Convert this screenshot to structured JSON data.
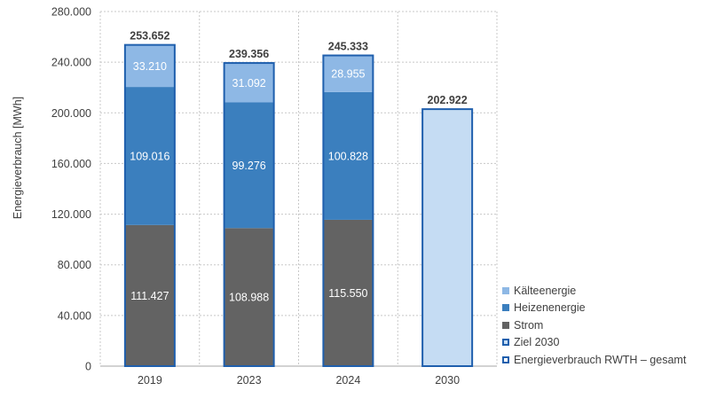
{
  "chart_data": {
    "type": "bar",
    "stacked": true,
    "categories": [
      "2019",
      "2023",
      "2024",
      "2030"
    ],
    "xlabel": "",
    "ylabel": "Energieverbrauch  [MWh]",
    "ylim": [
      0,
      280000
    ],
    "yticks": [
      0,
      40000,
      80000,
      120000,
      160000,
      200000,
      240000,
      280000
    ],
    "ytick_labels": [
      "0",
      "40.000",
      "80.000",
      "120.000",
      "160.000",
      "200.000",
      "240.000",
      "280.000"
    ],
    "grid": "dotted",
    "legend_position": "bottom-right",
    "series": [
      {
        "name": "Strom",
        "color": "#636363",
        "values": [
          111427,
          108988,
          115550,
          null
        ],
        "labels": [
          "111.427",
          "108.988",
          "115.550",
          ""
        ]
      },
      {
        "name": "Heizenenergie",
        "color": "#3b7fbe",
        "values": [
          109016,
          99276,
          100828,
          null
        ],
        "labels": [
          "109.016",
          "99.276",
          "100.828",
          ""
        ]
      },
      {
        "name": "Kälteenergie",
        "color": "#8eb8e5",
        "values": [
          33210,
          31092,
          28955,
          null
        ],
        "labels": [
          "33.210",
          "31.092",
          "28.955",
          ""
        ]
      },
      {
        "name": "Ziel 2030",
        "color": "#c5dcf3",
        "values": [
          null,
          null,
          null,
          202922
        ],
        "labels": [
          "",
          "",
          "",
          ""
        ]
      }
    ],
    "totals": {
      "name": "Energieverbrauch RWTH – gesamt",
      "outline_color": "#1f5fad",
      "values": [
        253652,
        239356,
        245333,
        202922
      ],
      "labels": [
        "253.652",
        "239.356",
        "245.333",
        "202.922"
      ]
    },
    "legend": [
      {
        "label": "Kälteenergie",
        "color": "#8eb8e5",
        "style": "fill"
      },
      {
        "label": "Heizenenergie",
        "color": "#3b7fbe",
        "style": "fill"
      },
      {
        "label": "Strom",
        "color": "#636363",
        "style": "fill"
      },
      {
        "label": "Ziel 2030",
        "color": "#c5dcf3",
        "style": "outline-fill"
      },
      {
        "label": "Energieverbrauch RWTH – gesamt",
        "color": "#ffffff",
        "style": "outline"
      }
    ]
  }
}
